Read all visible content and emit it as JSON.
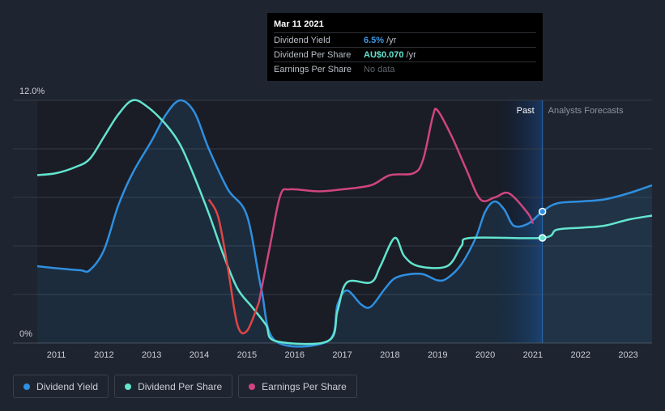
{
  "chart_data": {
    "type": "line",
    "y_top_label": "12.0%",
    "y_bottom_label": "0%",
    "ylim": [
      0,
      12
    ],
    "xlim": [
      2010.6,
      2023.5
    ],
    "x_ticks": [
      "2011",
      "2012",
      "2013",
      "2014",
      "2015",
      "2016",
      "2017",
      "2018",
      "2019",
      "2020",
      "2021",
      "2022",
      "2023"
    ],
    "past_label": "Past",
    "forecast_label": "Analysts Forecasts",
    "past_cutoff_x": 2021.2,
    "highlight_start_x": 2020.2,
    "series": [
      {
        "name": "Dividend Yield",
        "color": "#2f8fe0",
        "filled": true,
        "points": [
          [
            2010.6,
            3.8
          ],
          [
            2011.0,
            3.7
          ],
          [
            2011.5,
            3.6
          ],
          [
            2011.7,
            3.6
          ],
          [
            2012.0,
            4.6
          ],
          [
            2012.3,
            6.8
          ],
          [
            2012.6,
            8.4
          ],
          [
            2013.0,
            10.0
          ],
          [
            2013.3,
            11.3
          ],
          [
            2013.6,
            12.0
          ],
          [
            2013.9,
            11.4
          ],
          [
            2014.2,
            9.6
          ],
          [
            2014.6,
            7.6
          ],
          [
            2015.0,
            6.3
          ],
          [
            2015.3,
            2.7
          ],
          [
            2015.6,
            0.1
          ],
          [
            2016.7,
            0.1
          ],
          [
            2016.9,
            1.9
          ],
          [
            2017.1,
            2.6
          ],
          [
            2017.4,
            1.9
          ],
          [
            2017.6,
            1.8
          ],
          [
            2017.9,
            2.7
          ],
          [
            2018.1,
            3.2
          ],
          [
            2018.4,
            3.4
          ],
          [
            2018.7,
            3.4
          ],
          [
            2019.0,
            3.1
          ],
          [
            2019.2,
            3.2
          ],
          [
            2019.5,
            3.9
          ],
          [
            2019.8,
            5.2
          ],
          [
            2020.0,
            6.5
          ],
          [
            2020.2,
            7.0
          ],
          [
            2020.4,
            6.6
          ],
          [
            2020.6,
            5.8
          ],
          [
            2020.9,
            5.9
          ],
          [
            2021.2,
            6.5
          ],
          [
            2021.5,
            6.9
          ],
          [
            2022.0,
            7.0
          ],
          [
            2022.5,
            7.1
          ],
          [
            2023.0,
            7.4
          ],
          [
            2023.5,
            7.8
          ]
        ]
      },
      {
        "name": "Dividend Per Share",
        "color": "#63e4cf",
        "filled": false,
        "points": [
          [
            2010.6,
            8.3
          ],
          [
            2011.0,
            8.4
          ],
          [
            2011.4,
            8.7
          ],
          [
            2011.7,
            9.1
          ],
          [
            2012.0,
            10.2
          ],
          [
            2012.3,
            11.3
          ],
          [
            2012.6,
            12.0
          ],
          [
            2012.9,
            11.7
          ],
          [
            2013.3,
            10.8
          ],
          [
            2013.6,
            9.8
          ],
          [
            2013.9,
            8.2
          ],
          [
            2014.2,
            6.4
          ],
          [
            2014.5,
            4.4
          ],
          [
            2014.8,
            2.7
          ],
          [
            2015.1,
            1.8
          ],
          [
            2015.4,
            0.9
          ],
          [
            2015.6,
            0.1
          ],
          [
            2016.7,
            0.1
          ],
          [
            2016.9,
            1.6
          ],
          [
            2017.1,
            3.0
          ],
          [
            2017.6,
            3.0
          ],
          [
            2017.8,
            3.8
          ],
          [
            2018.1,
            5.2
          ],
          [
            2018.3,
            4.3
          ],
          [
            2018.6,
            3.8
          ],
          [
            2019.2,
            3.8
          ],
          [
            2019.5,
            4.8
          ],
          [
            2019.7,
            5.2
          ],
          [
            2021.2,
            5.2
          ],
          [
            2021.5,
            5.6
          ],
          [
            2022.0,
            5.7
          ],
          [
            2022.5,
            5.8
          ],
          [
            2023.0,
            6.1
          ],
          [
            2023.5,
            6.3
          ]
        ]
      },
      {
        "name": "Earnings Per Share",
        "color": "#cf4580",
        "filled": false,
        "split_color": "#e04545",
        "split_x": 2015.25,
        "points": [
          [
            2014.2,
            7.1
          ],
          [
            2014.4,
            6.2
          ],
          [
            2014.6,
            3.7
          ],
          [
            2014.8,
            0.9
          ],
          [
            2015.0,
            0.6
          ],
          [
            2015.25,
            2.0
          ],
          [
            2015.5,
            5.0
          ],
          [
            2015.7,
            7.3
          ],
          [
            2015.9,
            7.6
          ],
          [
            2016.5,
            7.5
          ],
          [
            2017.0,
            7.6
          ],
          [
            2017.6,
            7.8
          ],
          [
            2018.0,
            8.3
          ],
          [
            2018.5,
            8.4
          ],
          [
            2018.7,
            9.1
          ],
          [
            2018.9,
            11.2
          ],
          [
            2019.0,
            11.5
          ],
          [
            2019.3,
            10.2
          ],
          [
            2019.6,
            8.6
          ],
          [
            2019.9,
            7.1
          ],
          [
            2020.2,
            7.2
          ],
          [
            2020.5,
            7.4
          ],
          [
            2020.9,
            6.4
          ],
          [
            2021.0,
            5.9
          ]
        ]
      }
    ],
    "markers": [
      {
        "series": "Dividend Yield",
        "x": 2021.2,
        "y": 6.5
      },
      {
        "series": "Dividend Per Share",
        "x": 2021.2,
        "y": 5.2
      }
    ]
  },
  "tooltip": {
    "date": "Mar 11 2021",
    "rows": [
      {
        "label": "Dividend Yield",
        "value": "6.5%",
        "unit": "/yr"
      },
      {
        "label": "Dividend Per Share",
        "value": "AU$0.070",
        "unit": "/yr"
      },
      {
        "label": "Earnings Per Share",
        "value": "No data",
        "unit": ""
      }
    ]
  },
  "legend": [
    {
      "label": "Dividend Yield",
      "color": "#2f8fe0"
    },
    {
      "label": "Dividend Per Share",
      "color": "#63e4cf"
    },
    {
      "label": "Earnings Per Share",
      "color": "#cf4580"
    }
  ]
}
